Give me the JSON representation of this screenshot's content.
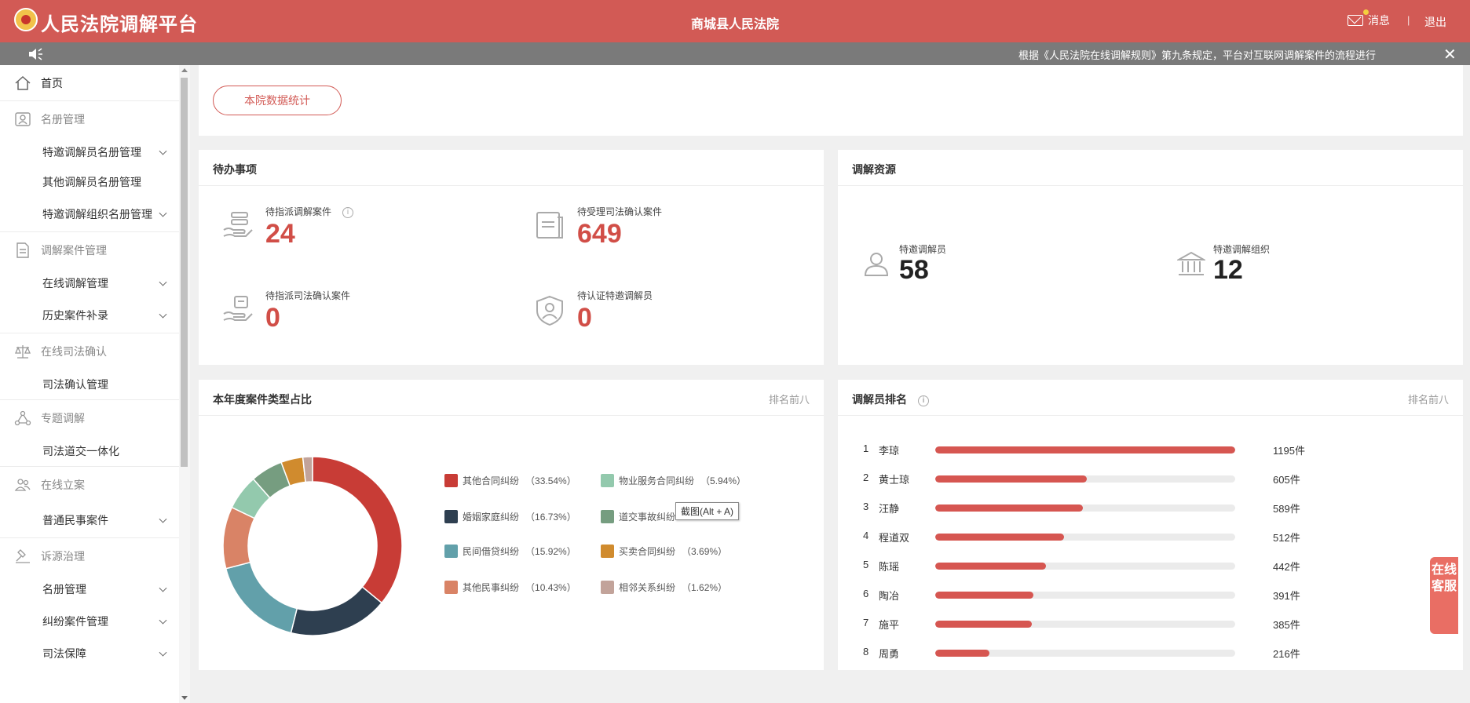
{
  "header": {
    "app_title": "人民法院调解平台",
    "court_name": "商城县人民法院",
    "message_label": "消息",
    "separator": "|",
    "logout_label": "退出"
  },
  "notice": {
    "text": "根据《人民法院在线调解规则》第九条规定，平台对互联网调解案件的流程进行",
    "close": "✕"
  },
  "sidebar": {
    "home": "首页",
    "groups": [
      {
        "title": "名册管理",
        "icon": "id-card-icon",
        "items": [
          {
            "label": "特邀调解员名册管理",
            "expandable": true
          },
          {
            "label": "其他调解员名册管理",
            "expandable": false
          },
          {
            "label": "特邀调解组织名册管理",
            "expandable": true
          }
        ]
      },
      {
        "title": "调解案件管理",
        "icon": "document-icon",
        "items": [
          {
            "label": "在线调解管理",
            "expandable": true
          },
          {
            "label": "历史案件补录",
            "expandable": true
          }
        ]
      },
      {
        "title": "在线司法确认",
        "icon": "scales-icon",
        "items": [
          {
            "label": "司法确认管理",
            "expandable": false
          }
        ]
      },
      {
        "title": "专题调解",
        "icon": "network-icon",
        "items": [
          {
            "label": "司法道交一体化",
            "expandable": false
          }
        ]
      },
      {
        "title": "在线立案",
        "icon": "people-icon",
        "items": [
          {
            "label": "普通民事案件",
            "expandable": true
          }
        ]
      },
      {
        "title": "诉源治理",
        "icon": "hammer-icon",
        "items": [
          {
            "label": "名册管理",
            "expandable": true
          },
          {
            "label": "纠纷案件管理",
            "expandable": true
          },
          {
            "label": "司法保障",
            "expandable": true
          }
        ]
      }
    ]
  },
  "main": {
    "stats_button": "本院数据统计",
    "todo": {
      "title": "待办事项",
      "items": [
        {
          "label": "待指派调解案件",
          "value": "24",
          "icon": "hand-cases-icon",
          "info": "i"
        },
        {
          "label": "待受理司法确认案件",
          "value": "649",
          "icon": "document-box-icon"
        },
        {
          "label": "待指派司法确认案件",
          "value": "0",
          "icon": "hand-judicial-icon"
        },
        {
          "label": "待认证特邀调解员",
          "value": "0",
          "icon": "shield-person-icon"
        }
      ]
    },
    "resources": {
      "title": "调解资源",
      "items": [
        {
          "label": "特邀调解员",
          "value": "58",
          "icon": "person-icon"
        },
        {
          "label": "特邀调解组织",
          "value": "12",
          "icon": "building-icon"
        }
      ]
    },
    "case_types": {
      "title": "本年度案件类型占比",
      "extra": "排名前八"
    },
    "ranking": {
      "title": "调解员排名",
      "info": "i",
      "extra": "排名前八",
      "max": 1195,
      "rows": [
        {
          "rank": "1",
          "name": "李琼",
          "value": 1195,
          "count": "1195件"
        },
        {
          "rank": "2",
          "name": "黄士琼",
          "value": 605,
          "count": "605件"
        },
        {
          "rank": "3",
          "name": "汪静",
          "value": 589,
          "count": "589件"
        },
        {
          "rank": "4",
          "name": "程道双",
          "value": 512,
          "count": "512件"
        },
        {
          "rank": "5",
          "name": "陈瑶",
          "value": 442,
          "count": "442件"
        },
        {
          "rank": "6",
          "name": "陶冶",
          "value": 391,
          "count": "391件"
        },
        {
          "rank": "7",
          "name": "施平",
          "value": 385,
          "count": "385件"
        },
        {
          "rank": "8",
          "name": "周勇",
          "value": 216,
          "count": "216件"
        }
      ]
    },
    "tooltip": "截图(Alt + A)",
    "support_button": "在线客服"
  },
  "colors": {
    "brand": "#d25a55",
    "number_red": "#d14e47"
  },
  "chart_data": {
    "type": "pie",
    "title": "本年度案件类型占比",
    "donut": true,
    "legend": "right",
    "slices": [
      {
        "label": "其他合同纠纷",
        "value": 33.54,
        "pct": "（33.54%）",
        "color": "#c83c36"
      },
      {
        "label": "婚姻家庭纠纷",
        "value": 16.73,
        "pct": "（16.73%）",
        "color": "#2e3f50"
      },
      {
        "label": "民间借贷纠纷",
        "value": 15.92,
        "pct": "（15.92%）",
        "color": "#62a0aa"
      },
      {
        "label": "其他民事纠纷",
        "value": 10.43,
        "pct": "（10.43%）",
        "color": "#d98366"
      },
      {
        "label": "物业服务合同纠纷",
        "value": 5.94,
        "pct": "（5.94%）",
        "color": "#93c9ad"
      },
      {
        "label": "道交事故纠纷",
        "value": 5.43,
        "pct": "",
        "color": "#769d80"
      },
      {
        "label": "买卖合同纠纷",
        "value": 3.69,
        "pct": "（3.69%）",
        "color": "#d08b2e"
      },
      {
        "label": "相邻关系纠纷",
        "value": 1.62,
        "pct": "（1.62%）",
        "color": "#c2a39a"
      }
    ]
  }
}
